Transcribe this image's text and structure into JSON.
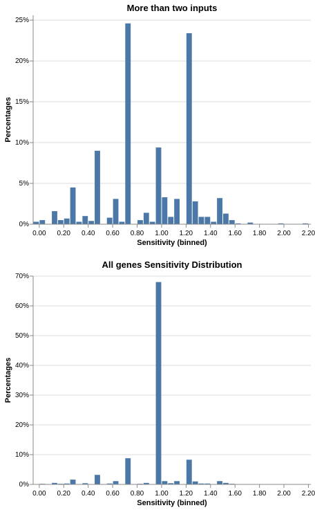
{
  "chart_data": [
    {
      "type": "bar",
      "title": "More than two inputs",
      "xlabel": "Sensitivity (binned)",
      "ylabel": "Percentages",
      "x_ticks": [
        "0.00",
        "0.20",
        "0.40",
        "0.60",
        "0.80",
        "1.00",
        "1.20",
        "1.40",
        "1.60",
        "1.80",
        "2.00",
        "2.20"
      ],
      "y_ticks": [
        "0%",
        "5%",
        "10%",
        "15%",
        "20%",
        "25%"
      ],
      "ylim": [
        0,
        25.6
      ],
      "xlim": [
        -0.05,
        2.22
      ],
      "bin_width": 0.05,
      "bar_color": "#4c78a8",
      "bins": [
        {
          "x": -0.05,
          "value": 0.3
        },
        {
          "x": 0.0,
          "value": 0.5
        },
        {
          "x": 0.1,
          "value": 1.6
        },
        {
          "x": 0.15,
          "value": 0.5
        },
        {
          "x": 0.2,
          "value": 0.7
        },
        {
          "x": 0.25,
          "value": 4.5
        },
        {
          "x": 0.3,
          "value": 0.3
        },
        {
          "x": 0.35,
          "value": 1.0
        },
        {
          "x": 0.4,
          "value": 0.4
        },
        {
          "x": 0.45,
          "value": 9.0
        },
        {
          "x": 0.55,
          "value": 0.8
        },
        {
          "x": 0.6,
          "value": 3.1
        },
        {
          "x": 0.65,
          "value": 0.3
        },
        {
          "x": 0.7,
          "value": 24.6
        },
        {
          "x": 0.8,
          "value": 0.5
        },
        {
          "x": 0.85,
          "value": 1.4
        },
        {
          "x": 0.9,
          "value": 0.3
        },
        {
          "x": 0.95,
          "value": 9.4
        },
        {
          "x": 1.0,
          "value": 3.3
        },
        {
          "x": 1.05,
          "value": 0.9
        },
        {
          "x": 1.1,
          "value": 3.1
        },
        {
          "x": 1.2,
          "value": 23.4
        },
        {
          "x": 1.25,
          "value": 2.8
        },
        {
          "x": 1.3,
          "value": 0.9
        },
        {
          "x": 1.35,
          "value": 0.9
        },
        {
          "x": 1.4,
          "value": 0.3
        },
        {
          "x": 1.45,
          "value": 3.2
        },
        {
          "x": 1.5,
          "value": 1.3
        },
        {
          "x": 1.55,
          "value": 0.5
        },
        {
          "x": 1.6,
          "value": 0.1
        },
        {
          "x": 1.7,
          "value": 0.2
        },
        {
          "x": 1.95,
          "value": 0.1
        },
        {
          "x": 2.15,
          "value": 0.1
        }
      ]
    },
    {
      "type": "bar",
      "title": "All genes Sensitivity Distribution",
      "xlabel": "Sensitivity (binned)",
      "ylabel": "Percentages",
      "x_ticks": [
        "0.00",
        "0.20",
        "0.40",
        "0.60",
        "0.80",
        "1.00",
        "1.20",
        "1.40",
        "1.60",
        "1.80",
        "2.00",
        "2.20"
      ],
      "y_ticks": [
        "0%",
        "10%",
        "20%",
        "30%",
        "40%",
        "50%",
        "60%",
        "70%"
      ],
      "ylim": [
        0,
        70
      ],
      "xlim": [
        -0.05,
        2.22
      ],
      "bin_width": 0.05,
      "bar_color": "#4c78a8",
      "bins": [
        {
          "x": -0.05,
          "value": 0.1
        },
        {
          "x": 0.0,
          "value": 0.2
        },
        {
          "x": 0.1,
          "value": 0.5
        },
        {
          "x": 0.15,
          "value": 0.2
        },
        {
          "x": 0.2,
          "value": 0.3
        },
        {
          "x": 0.25,
          "value": 1.6
        },
        {
          "x": 0.35,
          "value": 0.4
        },
        {
          "x": 0.4,
          "value": 0.1
        },
        {
          "x": 0.45,
          "value": 3.2
        },
        {
          "x": 0.55,
          "value": 0.3
        },
        {
          "x": 0.6,
          "value": 1.1
        },
        {
          "x": 0.65,
          "value": 0.1
        },
        {
          "x": 0.7,
          "value": 8.8
        },
        {
          "x": 0.8,
          "value": 0.2
        },
        {
          "x": 0.85,
          "value": 0.5
        },
        {
          "x": 0.9,
          "value": 0.1
        },
        {
          "x": 0.95,
          "value": 68.0
        },
        {
          "x": 1.0,
          "value": 1.1
        },
        {
          "x": 1.05,
          "value": 0.4
        },
        {
          "x": 1.1,
          "value": 1.1
        },
        {
          "x": 1.2,
          "value": 8.3
        },
        {
          "x": 1.25,
          "value": 1.0
        },
        {
          "x": 1.3,
          "value": 0.3
        },
        {
          "x": 1.35,
          "value": 0.3
        },
        {
          "x": 1.45,
          "value": 1.1
        },
        {
          "x": 1.5,
          "value": 0.5
        },
        {
          "x": 1.55,
          "value": 0.2
        }
      ]
    }
  ]
}
